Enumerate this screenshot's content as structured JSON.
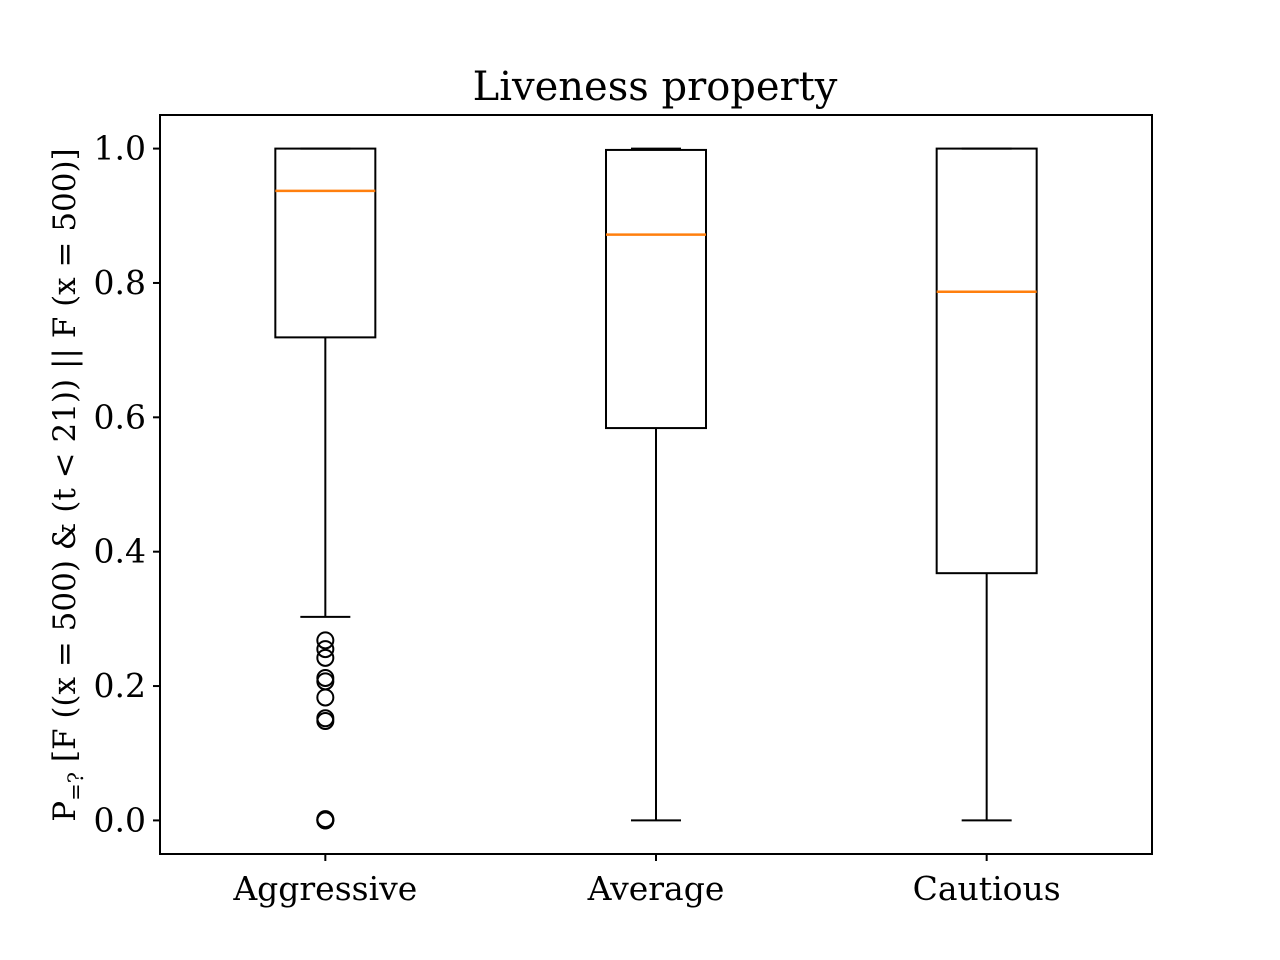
{
  "chart_data": {
    "type": "boxplot",
    "title": "Liveness property",
    "xlabel": "",
    "ylabel": "P=? [F ((x = 500) & (t < 21)) || F (x = 500)]",
    "ylabel_parts": {
      "prefix": "P",
      "subscript": "=?",
      "rest": " [F ((x = 500) & (t < 21)) || F (x = 500)]"
    },
    "categories": [
      "Aggressive",
      "Average",
      "Cautious"
    ],
    "ylim": [
      -0.05,
      1.05
    ],
    "yticks": [
      0.0,
      0.2,
      0.4,
      0.6,
      0.8,
      1.0
    ],
    "ytick_labels": [
      "0.0",
      "0.2",
      "0.4",
      "0.6",
      "0.8",
      "1.0"
    ],
    "grid": false,
    "legend": "none",
    "boxes": [
      {
        "category": "Aggressive",
        "whisker_low": 0.303,
        "q1": 0.719,
        "median": 0.937,
        "q3": 1.0,
        "whisker_high": 1.0,
        "outliers": [
          0.0,
          0.0,
          0.002,
          0.148,
          0.152,
          0.183,
          0.207,
          0.212,
          0.242,
          0.255,
          0.268
        ]
      },
      {
        "category": "Average",
        "whisker_low": 0.0,
        "q1": 0.584,
        "median": 0.872,
        "q3": 0.998,
        "whisker_high": 1.0,
        "outliers": []
      },
      {
        "category": "Cautious",
        "whisker_low": 0.0,
        "q1": 0.368,
        "median": 0.787,
        "q3": 1.0,
        "whisker_high": 1.0,
        "outliers": []
      }
    ],
    "colors": {
      "box": "#000000",
      "median": "#ff7f0e"
    }
  }
}
